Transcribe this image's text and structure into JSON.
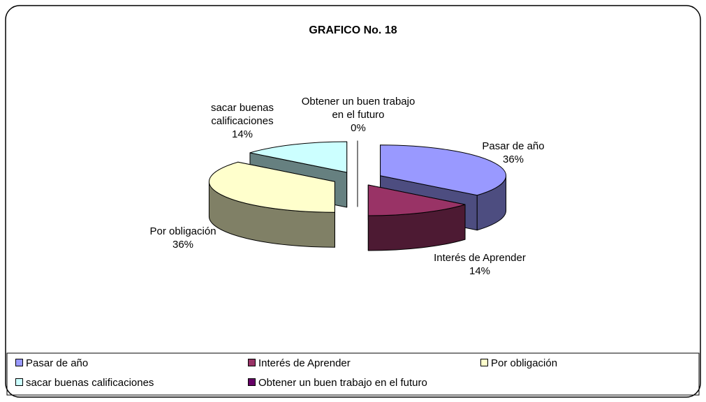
{
  "chart_data": {
    "type": "pie3d",
    "title": "GRAFICO No. 18",
    "categories": [
      "Pasar de año",
      "Interés de Aprender",
      "Por obligación",
      "sacar buenas calificaciones",
      "Obtener un buen trabajo en el futuro"
    ],
    "values": [
      36,
      14,
      36,
      14,
      0
    ],
    "value_labels": [
      "36%",
      "14%",
      "36%",
      "14%",
      "0%"
    ],
    "colors": [
      "#9999ff",
      "#993366",
      "#ffffcc",
      "#ccffff",
      "#660066"
    ],
    "legend": "bottom"
  }
}
